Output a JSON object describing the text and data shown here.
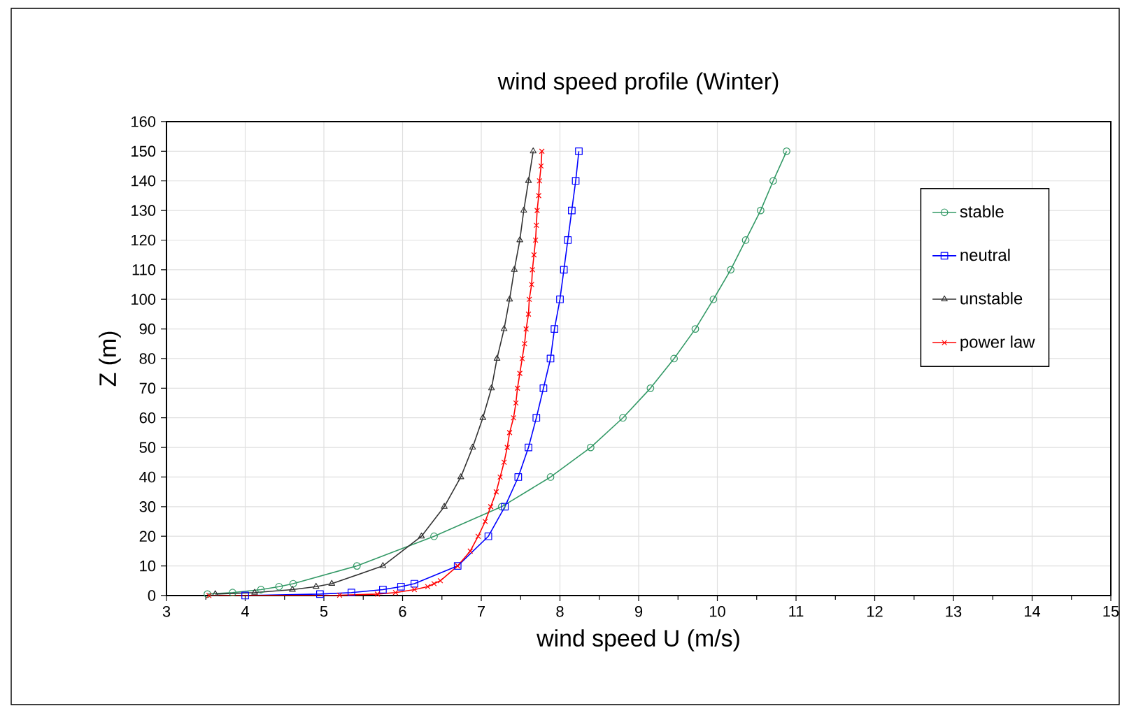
{
  "chart_data": {
    "type": "line",
    "title": "wind speed profile (Winter)",
    "xlabel": "wind speed U (m/s)",
    "ylabel": "Z (m)",
    "xlim": [
      3,
      15
    ],
    "ylim": [
      0,
      160
    ],
    "xticks": [
      3,
      4,
      5,
      6,
      7,
      8,
      9,
      10,
      11,
      12,
      13,
      14,
      15
    ],
    "yticks": [
      0,
      10,
      20,
      30,
      40,
      50,
      60,
      70,
      80,
      90,
      100,
      110,
      120,
      130,
      140,
      150,
      160
    ],
    "grid": true,
    "legend": "right",
    "line_style": "solid",
    "series": [
      {
        "name": "stable",
        "color": "#339966",
        "marker": "circle",
        "x": [
          3.52,
          3.84,
          4.2,
          4.43,
          4.61,
          5.42,
          6.4,
          7.26,
          7.88,
          8.39,
          8.8,
          9.15,
          9.45,
          9.72,
          9.95,
          10.17,
          10.36,
          10.55,
          10.71,
          10.88
        ],
        "values": [
          0.5,
          1,
          2,
          3,
          4,
          10,
          20,
          30,
          40,
          50,
          60,
          70,
          80,
          90,
          100,
          110,
          120,
          130,
          140,
          150
        ]
      },
      {
        "name": "neutral",
        "color": "#0000ff",
        "marker": "square",
        "x": [
          4.0,
          4.95,
          5.35,
          5.75,
          5.98,
          6.15,
          6.7,
          7.09,
          7.3,
          7.47,
          7.6,
          7.7,
          7.79,
          7.88,
          7.93,
          8.0,
          8.05,
          8.1,
          8.15,
          8.2,
          8.24
        ],
        "values": [
          0,
          0.5,
          1,
          2,
          3,
          4,
          10,
          20,
          30,
          40,
          50,
          60,
          70,
          80,
          90,
          100,
          110,
          120,
          130,
          140,
          150
        ]
      },
      {
        "name": "unstable",
        "color": "#333333",
        "marker": "triangle",
        "x": [
          3.62,
          4.12,
          4.6,
          4.9,
          5.1,
          5.75,
          6.24,
          6.53,
          6.74,
          6.89,
          7.02,
          7.13,
          7.2,
          7.29,
          7.36,
          7.42,
          7.49,
          7.54,
          7.6,
          7.66
        ],
        "values": [
          0.5,
          1,
          2,
          3,
          4,
          10,
          20,
          30,
          40,
          50,
          60,
          70,
          80,
          90,
          100,
          110,
          120,
          130,
          140,
          150
        ]
      },
      {
        "name": "power law",
        "color": "#ff0000",
        "marker": "cross",
        "x": [
          3.54,
          5.2,
          5.68,
          5.91,
          6.15,
          6.32,
          6.4,
          6.48,
          6.7,
          6.86,
          6.96,
          7.05,
          7.12,
          7.19,
          7.24,
          7.29,
          7.33,
          7.36,
          7.41,
          7.44,
          7.46,
          7.49,
          7.52,
          7.55,
          7.57,
          7.6,
          7.61,
          7.64,
          7.65,
          7.67,
          7.69,
          7.7,
          7.71,
          7.73,
          7.74,
          7.76,
          7.77
        ],
        "values": [
          0,
          0.1,
          0.5,
          1,
          2,
          3,
          4,
          5,
          10,
          15,
          20,
          25,
          30,
          35,
          40,
          45,
          50,
          55,
          60,
          65,
          70,
          75,
          80,
          85,
          90,
          95,
          100,
          105,
          110,
          115,
          120,
          125,
          130,
          135,
          140,
          145,
          150
        ]
      }
    ]
  }
}
